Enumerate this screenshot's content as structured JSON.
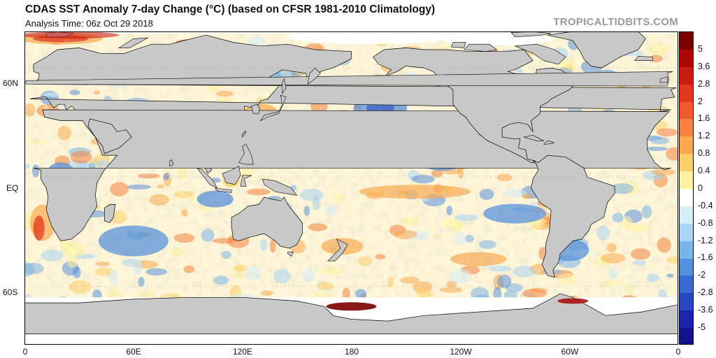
{
  "header": {
    "title": "CDAS SST Anomaly 7-day Change (°C) (based on CFSR 1981-2010 Climatology)",
    "analysis_time": "Analysis Time: 06z Oct 29 2018",
    "credit": "TROPICALTIDBITS.COM"
  },
  "map": {
    "lat_labels": [
      "60N",
      "EQ",
      "60S"
    ],
    "lon_labels": [
      "0",
      "60E",
      "120E",
      "180",
      "120W",
      "60W",
      "0"
    ],
    "colors": {
      "land": "#c8c8c8",
      "no_data": "#ffffff"
    }
  },
  "colorbar": {
    "labels": [
      "5",
      "3.6",
      "2.8",
      "2",
      "1.6",
      "1.2",
      "0.8",
      "0.4",
      "0",
      "-0.4",
      "-0.8",
      "-1.2",
      "-1.6",
      "-2",
      "-2.8",
      "-3.6",
      "-5"
    ],
    "colors": [
      "#7a0000",
      "#a80606",
      "#c81e12",
      "#e2381d",
      "#ef5a2d",
      "#f6823d",
      "#fba94f",
      "#fdd067",
      "#fff2a0",
      "#ffffff",
      "#d6eefa",
      "#a8d6f4",
      "#7ab4e8",
      "#5590dc",
      "#3b6bd0",
      "#2747c2",
      "#1c23ae",
      "#12138c"
    ]
  }
}
